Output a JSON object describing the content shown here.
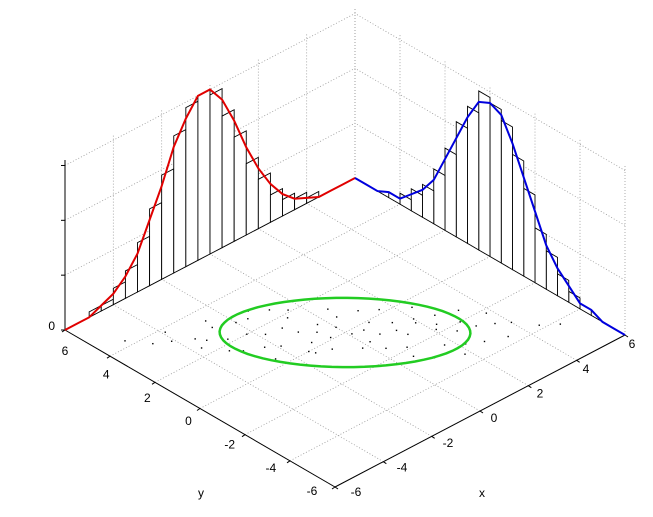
{
  "chart_data": {
    "type": "scatter3d",
    "xlabel": "x",
    "ylabel": "y",
    "xlim": [
      -6,
      6
    ],
    "ylim": [
      -6,
      6
    ],
    "zlim": [
      0,
      0.31
    ],
    "xticks": [
      -6,
      -4,
      -2,
      0,
      2,
      4,
      6
    ],
    "yticks": [
      -6,
      -4,
      -2,
      0,
      2,
      4,
      6
    ],
    "zticks": [
      0,
      {
        "value": 0.1,
        "label": null
      },
      {
        "value": 0.2,
        "label": null
      },
      {
        "value": 0.3,
        "label": null
      }
    ],
    "grid": true,
    "scatter": {
      "color": "#000000",
      "x": [
        0.5,
        -1.2,
        2.1,
        -2.8,
        1.4,
        -0.3,
        3.1,
        -1.9,
        0.8,
        -3.5,
        2.6,
        -0.9,
        1.1,
        -1.6,
        0.2,
        4.0,
        -2.3,
        1.7,
        -0.5,
        2.4,
        -4.1,
        0.9,
        -1.1,
        3.4,
        -2.7,
        0.0,
        1.9,
        -0.7,
        2.9,
        -3.2,
        0.6,
        -1.4,
        1.3,
        -2.0,
        3.8,
        -0.2,
        2.2,
        -3.7,
        0.4,
        -1.8,
        1.6,
        -2.5,
        2.7,
        -0.4,
        4.5,
        -4.6,
        1.0,
        -1.0,
        0.3,
        3.3,
        -2.9,
        0.7,
        -0.8,
        2.0,
        -3.9,
        1.8,
        -1.5,
        0.1,
        2.5,
        -2.2,
        5.0,
        -5.1,
        1.2,
        -0.6,
        3.6,
        -3.3,
        0.5,
        -1.3,
        2.3,
        -2.6
      ],
      "y": [
        -0.3,
        1.5,
        -1.8,
        2.2,
        -0.6,
        0.9,
        -2.5,
        0.8,
        -1.9,
        2.9,
        -1.2,
        -0.4,
        0.6,
        2.6,
        -0.9,
        -3.1,
        1.1,
        -2.6,
        0.1,
        -0.4,
        3.3,
        -0.1,
        0.3,
        -3.6,
        3.0,
        0.4,
        -1.1,
        1.8,
        -2.0,
        1.7,
        -2.4,
        -0.2,
        -1.4,
        2.7,
        -2.2,
        -1.0,
        -3.0,
        2.4,
        0.8,
        1.6,
        0.2,
        0.4,
        -3.3,
        2.1,
        -3.8,
        3.6,
        -2.9,
        1.0,
        -1.5,
        -1.5,
        1.4,
        -0.8,
        2.5,
        -0.9,
        3.8,
        -3.4,
        0.0,
        -0.2,
        -2.3,
        2.0,
        -4.2,
        4.3,
        -1.0,
        0.6,
        -2.8,
        2.6,
        1.3,
        2.9,
        -1.6,
        3.4
      ]
    },
    "ellipse": {
      "color": "#22cc22",
      "center": [
        0,
        0
      ],
      "radii": [
        3.8,
        1.9
      ],
      "angle": -45
    },
    "histograms": [
      {
        "axis": "x",
        "bins": [
          -6,
          -5.5,
          -5,
          -4.5,
          -4,
          -3.5,
          -3,
          -2.5,
          -2,
          -1.5,
          -1,
          -0.5,
          0,
          0.5,
          1,
          1.5,
          2,
          2.5,
          3,
          3.5,
          4,
          4.5,
          5,
          5.5,
          6
        ],
        "counts": [
          0,
          0,
          0.01,
          0.01,
          0.03,
          0.05,
          0.09,
          0.14,
          0.19,
          0.25,
          0.29,
          0.3,
          0.29,
          0.24,
          0.19,
          0.13,
          0.09,
          0.05,
          0.03,
          0.02,
          0.01,
          0,
          0,
          0
        ]
      },
      {
        "axis": "y",
        "bins": [
          -6,
          -5.5,
          -5,
          -4.5,
          -4,
          -3.5,
          -3,
          -2.5,
          -2,
          -1.5,
          -1,
          -0.5,
          0,
          0.5,
          1,
          1.5,
          2,
          2.5,
          3,
          3.5,
          4,
          4.5,
          5,
          5.5,
          6
        ],
        "counts": [
          0,
          0,
          0,
          0.01,
          0.02,
          0.04,
          0.07,
          0.1,
          0.16,
          0.21,
          0.26,
          0.28,
          0.29,
          0.25,
          0.21,
          0.15,
          0.1,
          0.06,
          0.04,
          0.02,
          0.01,
          0,
          0,
          0
        ]
      }
    ],
    "curves": [
      {
        "axis": "x",
        "color": "#e00000",
        "x": [
          -6,
          -5.5,
          -5,
          -4.5,
          -4,
          -3.5,
          -3,
          -2.5,
          -2,
          -1.5,
          -1,
          -0.5,
          0,
          0.5,
          1,
          1.5,
          2,
          2.5,
          3,
          3.5,
          4,
          4.5,
          5,
          5.5,
          6
        ],
        "values": [
          0,
          0,
          0,
          0.01,
          0.02,
          0.04,
          0.07,
          0.12,
          0.17,
          0.23,
          0.27,
          0.3,
          0.3,
          0.27,
          0.22,
          0.16,
          0.11,
          0.07,
          0.04,
          0.02,
          0.01,
          0,
          0,
          0,
          0
        ]
      },
      {
        "axis": "y",
        "color": "#0000dd",
        "x": [
          -6,
          -5.5,
          -5,
          -4.5,
          -4,
          -3.5,
          -3,
          -2.5,
          -2,
          -1.5,
          -1,
          -0.5,
          0,
          0.5,
          1,
          1.5,
          2,
          2.5,
          3,
          3.5,
          4,
          4.5,
          5,
          5.5,
          6
        ],
        "values": [
          0,
          0,
          0,
          0.01,
          0.01,
          0.03,
          0.05,
          0.08,
          0.13,
          0.18,
          0.23,
          0.27,
          0.28,
          0.27,
          0.23,
          0.18,
          0.13,
          0.08,
          0.05,
          0.03,
          0.01,
          0.01,
          0,
          0,
          0
        ]
      }
    ]
  }
}
